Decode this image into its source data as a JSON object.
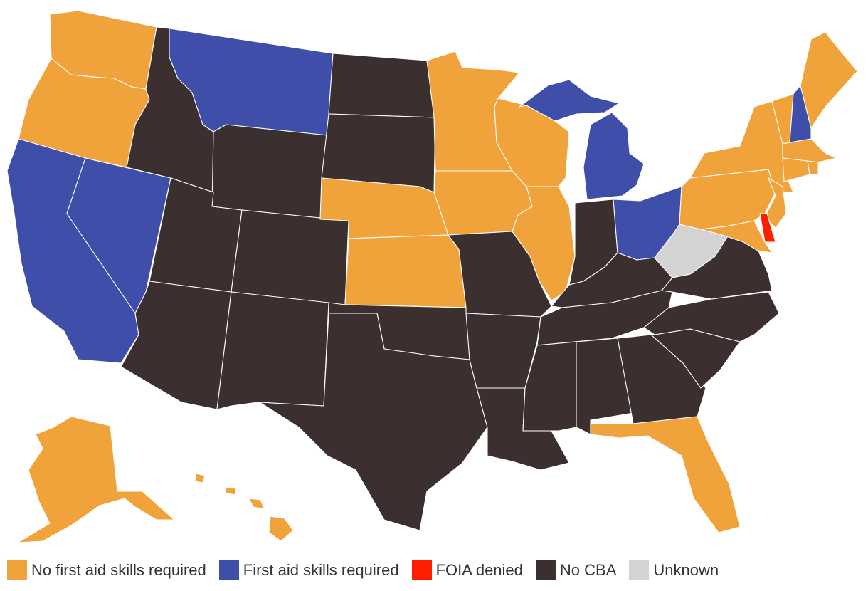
{
  "colors": {
    "orange": "#F0A33A",
    "blue": "#3F4EA8",
    "red": "#FF1E00",
    "dark": "#3B2F2F",
    "gray": "#D3D3D3"
  },
  "legend": [
    {
      "label": "No first aid skills required",
      "color": "#F0A33A"
    },
    {
      "label": "First aid skills required",
      "color": "#3F4EA8"
    },
    {
      "label": "FOIA denied",
      "color": "#FF1E00"
    },
    {
      "label": "No CBA",
      "color": "#3B2F2F"
    },
    {
      "label": "Unknown",
      "color": "#D3D3D3"
    }
  ],
  "states": {
    "WA": "No first aid skills required",
    "OR": "No first aid skills required",
    "CA": "First aid skills required",
    "NV": "First aid skills required",
    "ID": "No CBA",
    "MT": "First aid skills required",
    "WY": "No CBA",
    "UT": "No CBA",
    "AZ": "No CBA",
    "CO": "No CBA",
    "NM": "No CBA",
    "ND": "No CBA",
    "SD": "No CBA",
    "NE": "No first aid skills required",
    "KS": "No first aid skills required",
    "OK": "No CBA",
    "TX": "No CBA",
    "MN": "No first aid skills required",
    "IA": "No first aid skills required",
    "MO": "No CBA",
    "AR": "No CBA",
    "LA": "No CBA",
    "WI": "No first aid skills required",
    "IL": "No first aid skills required",
    "MI": "First aid skills required",
    "IN": "No CBA",
    "OH": "First aid skills required",
    "KY": "No CBA",
    "TN": "No CBA",
    "MS": "No CBA",
    "AL": "No CBA",
    "GA": "No CBA",
    "FL": "No first aid skills required",
    "SC": "No CBA",
    "NC": "No CBA",
    "VA": "No CBA",
    "WV": "Unknown",
    "PA": "No first aid skills required",
    "NY": "No first aid skills required",
    "VT": "No first aid skills required",
    "NH": "First aid skills required",
    "ME": "No first aid skills required",
    "MA": "No first aid skills required",
    "RI": "No first aid skills required",
    "CT": "No first aid skills required",
    "NJ": "No first aid skills required",
    "DE": "FOIA denied",
    "MD": "No first aid skills required",
    "AK": "No first aid skills required",
    "HI": "No first aid skills required"
  }
}
